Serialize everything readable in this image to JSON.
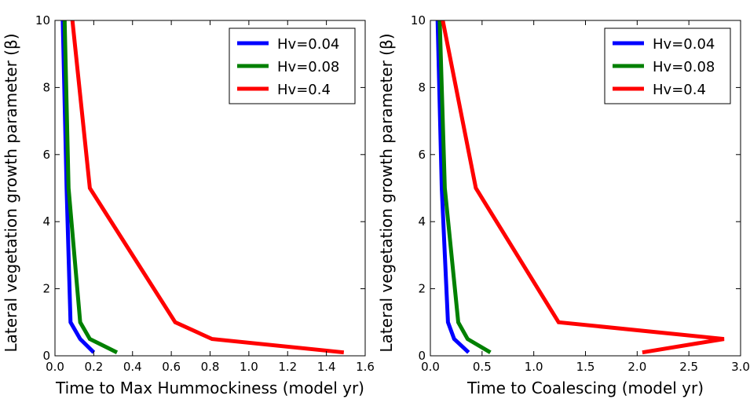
{
  "chart_data": [
    {
      "type": "line",
      "title": "",
      "xlabel": "Time to Max Hummockiness (model yr)",
      "ylabel": "Lateral vegetation growth parameter (β)",
      "xlim": [
        0,
        1.6
      ],
      "ylim": [
        0,
        10
      ],
      "xticks": [
        "0.0",
        "0.2",
        "0.4",
        "0.6",
        "0.8",
        "1.0",
        "1.2",
        "1.4",
        "1.6"
      ],
      "xtick_values": [
        0,
        0.2,
        0.4,
        0.6,
        0.8,
        1.0,
        1.2,
        1.4,
        1.6
      ],
      "yticks": [
        "0",
        "2",
        "4",
        "6",
        "8",
        "10"
      ],
      "ytick_values": [
        0,
        2,
        4,
        6,
        8,
        10
      ],
      "grid": false,
      "legend_position": "top-right",
      "series": [
        {
          "name": "Hv=0.04",
          "color": "#0000ff",
          "x": [
            0.2,
            0.13,
            0.08,
            0.06,
            0.04
          ],
          "y": [
            0.1,
            0.5,
            1,
            5,
            10
          ]
        },
        {
          "name": "Hv=0.08",
          "color": "#008000",
          "x": [
            0.32,
            0.18,
            0.13,
            0.07,
            0.05
          ],
          "y": [
            0.1,
            0.5,
            1,
            5,
            10
          ]
        },
        {
          "name": "Hv=0.4",
          "color": "#ff0000",
          "x": [
            1.49,
            0.81,
            0.62,
            0.18,
            0.09
          ],
          "y": [
            0.1,
            0.5,
            1,
            5,
            10
          ]
        }
      ]
    },
    {
      "type": "line",
      "title": "",
      "xlabel": "Time to Coalescing (model yr)",
      "ylabel": "Lateral vegetation growth parameter (β)",
      "xlim": [
        0,
        3.0
      ],
      "ylim": [
        0,
        10
      ],
      "xticks": [
        "0.0",
        "0.5",
        "1.0",
        "1.5",
        "2.0",
        "2.5",
        "3.0"
      ],
      "xtick_values": [
        0,
        0.5,
        1.0,
        1.5,
        2.0,
        2.5,
        3.0
      ],
      "yticks": [
        "0",
        "2",
        "4",
        "6",
        "8",
        "10"
      ],
      "ytick_values": [
        0,
        2,
        4,
        6,
        8,
        10
      ],
      "grid": false,
      "legend_position": "top-right",
      "series": [
        {
          "name": "Hv=0.04",
          "color": "#0000ff",
          "x": [
            0.37,
            0.23,
            0.17,
            0.11,
            0.07
          ],
          "y": [
            0.1,
            0.5,
            1,
            5,
            10
          ]
        },
        {
          "name": "Hv=0.08",
          "color": "#008000",
          "x": [
            0.58,
            0.36,
            0.27,
            0.14,
            0.09
          ],
          "y": [
            0.1,
            0.5,
            1,
            5,
            10
          ]
        },
        {
          "name": "Hv=0.4",
          "color": "#ff0000",
          "x": [
            2.05,
            2.84,
            1.24,
            0.44,
            0.12
          ],
          "y": [
            0.1,
            0.5,
            1,
            5,
            10
          ]
        }
      ]
    }
  ]
}
